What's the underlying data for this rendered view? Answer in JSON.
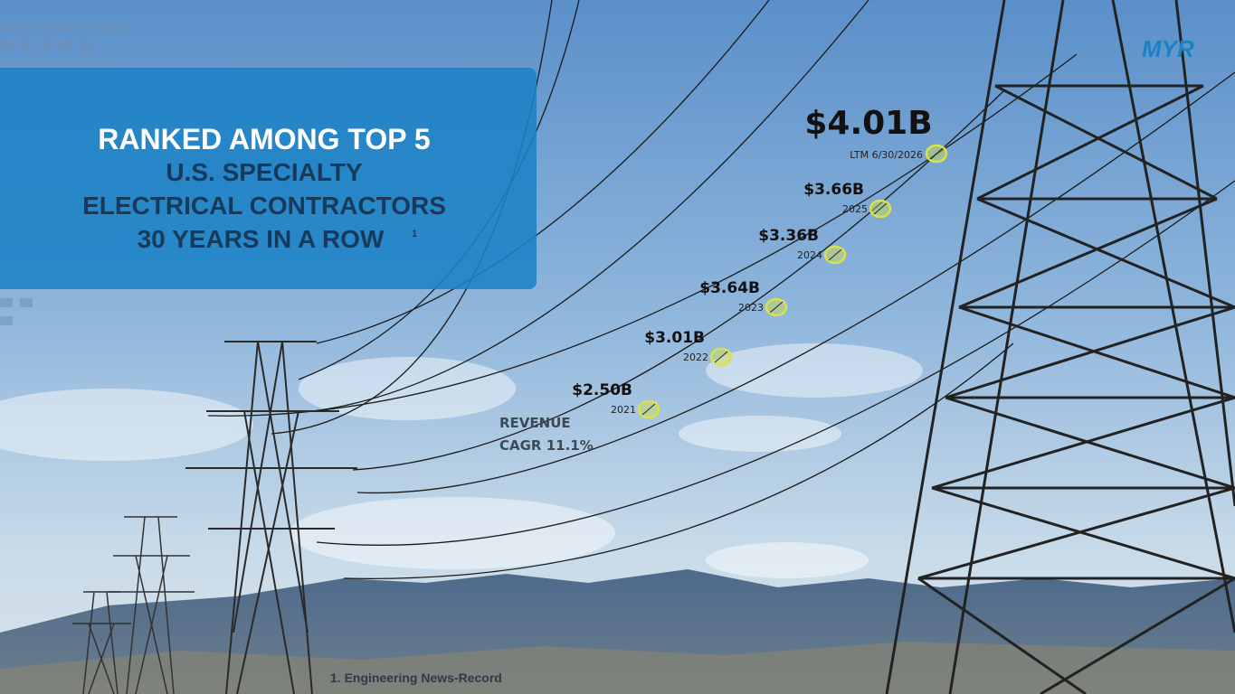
{
  "panel": {
    "line1": "RANKED AMONG TOP 5",
    "line2": "U.S. SPECIALTY",
    "line3": "ELECTRICAL CONTRACTORS",
    "line4": "30 YEARS IN A ROW",
    "superscript": "1"
  },
  "milestones": [
    {
      "amount": "$2.50B",
      "period": "2021"
    },
    {
      "amount": "$3.01B",
      "period": "2022"
    },
    {
      "amount": "$3.64B",
      "period": "2023"
    },
    {
      "amount": "$3.36B",
      "period": "2024"
    },
    {
      "amount": "$3.66B",
      "period": "2025"
    },
    {
      "amount": "$4.01B",
      "period": "LTM 6/30/2026"
    }
  ],
  "growth": {
    "line1": "REVENUE",
    "line2": "CAGR 11.1%"
  },
  "footnote": "1. Engineering News-Record",
  "logo": "MYR"
}
